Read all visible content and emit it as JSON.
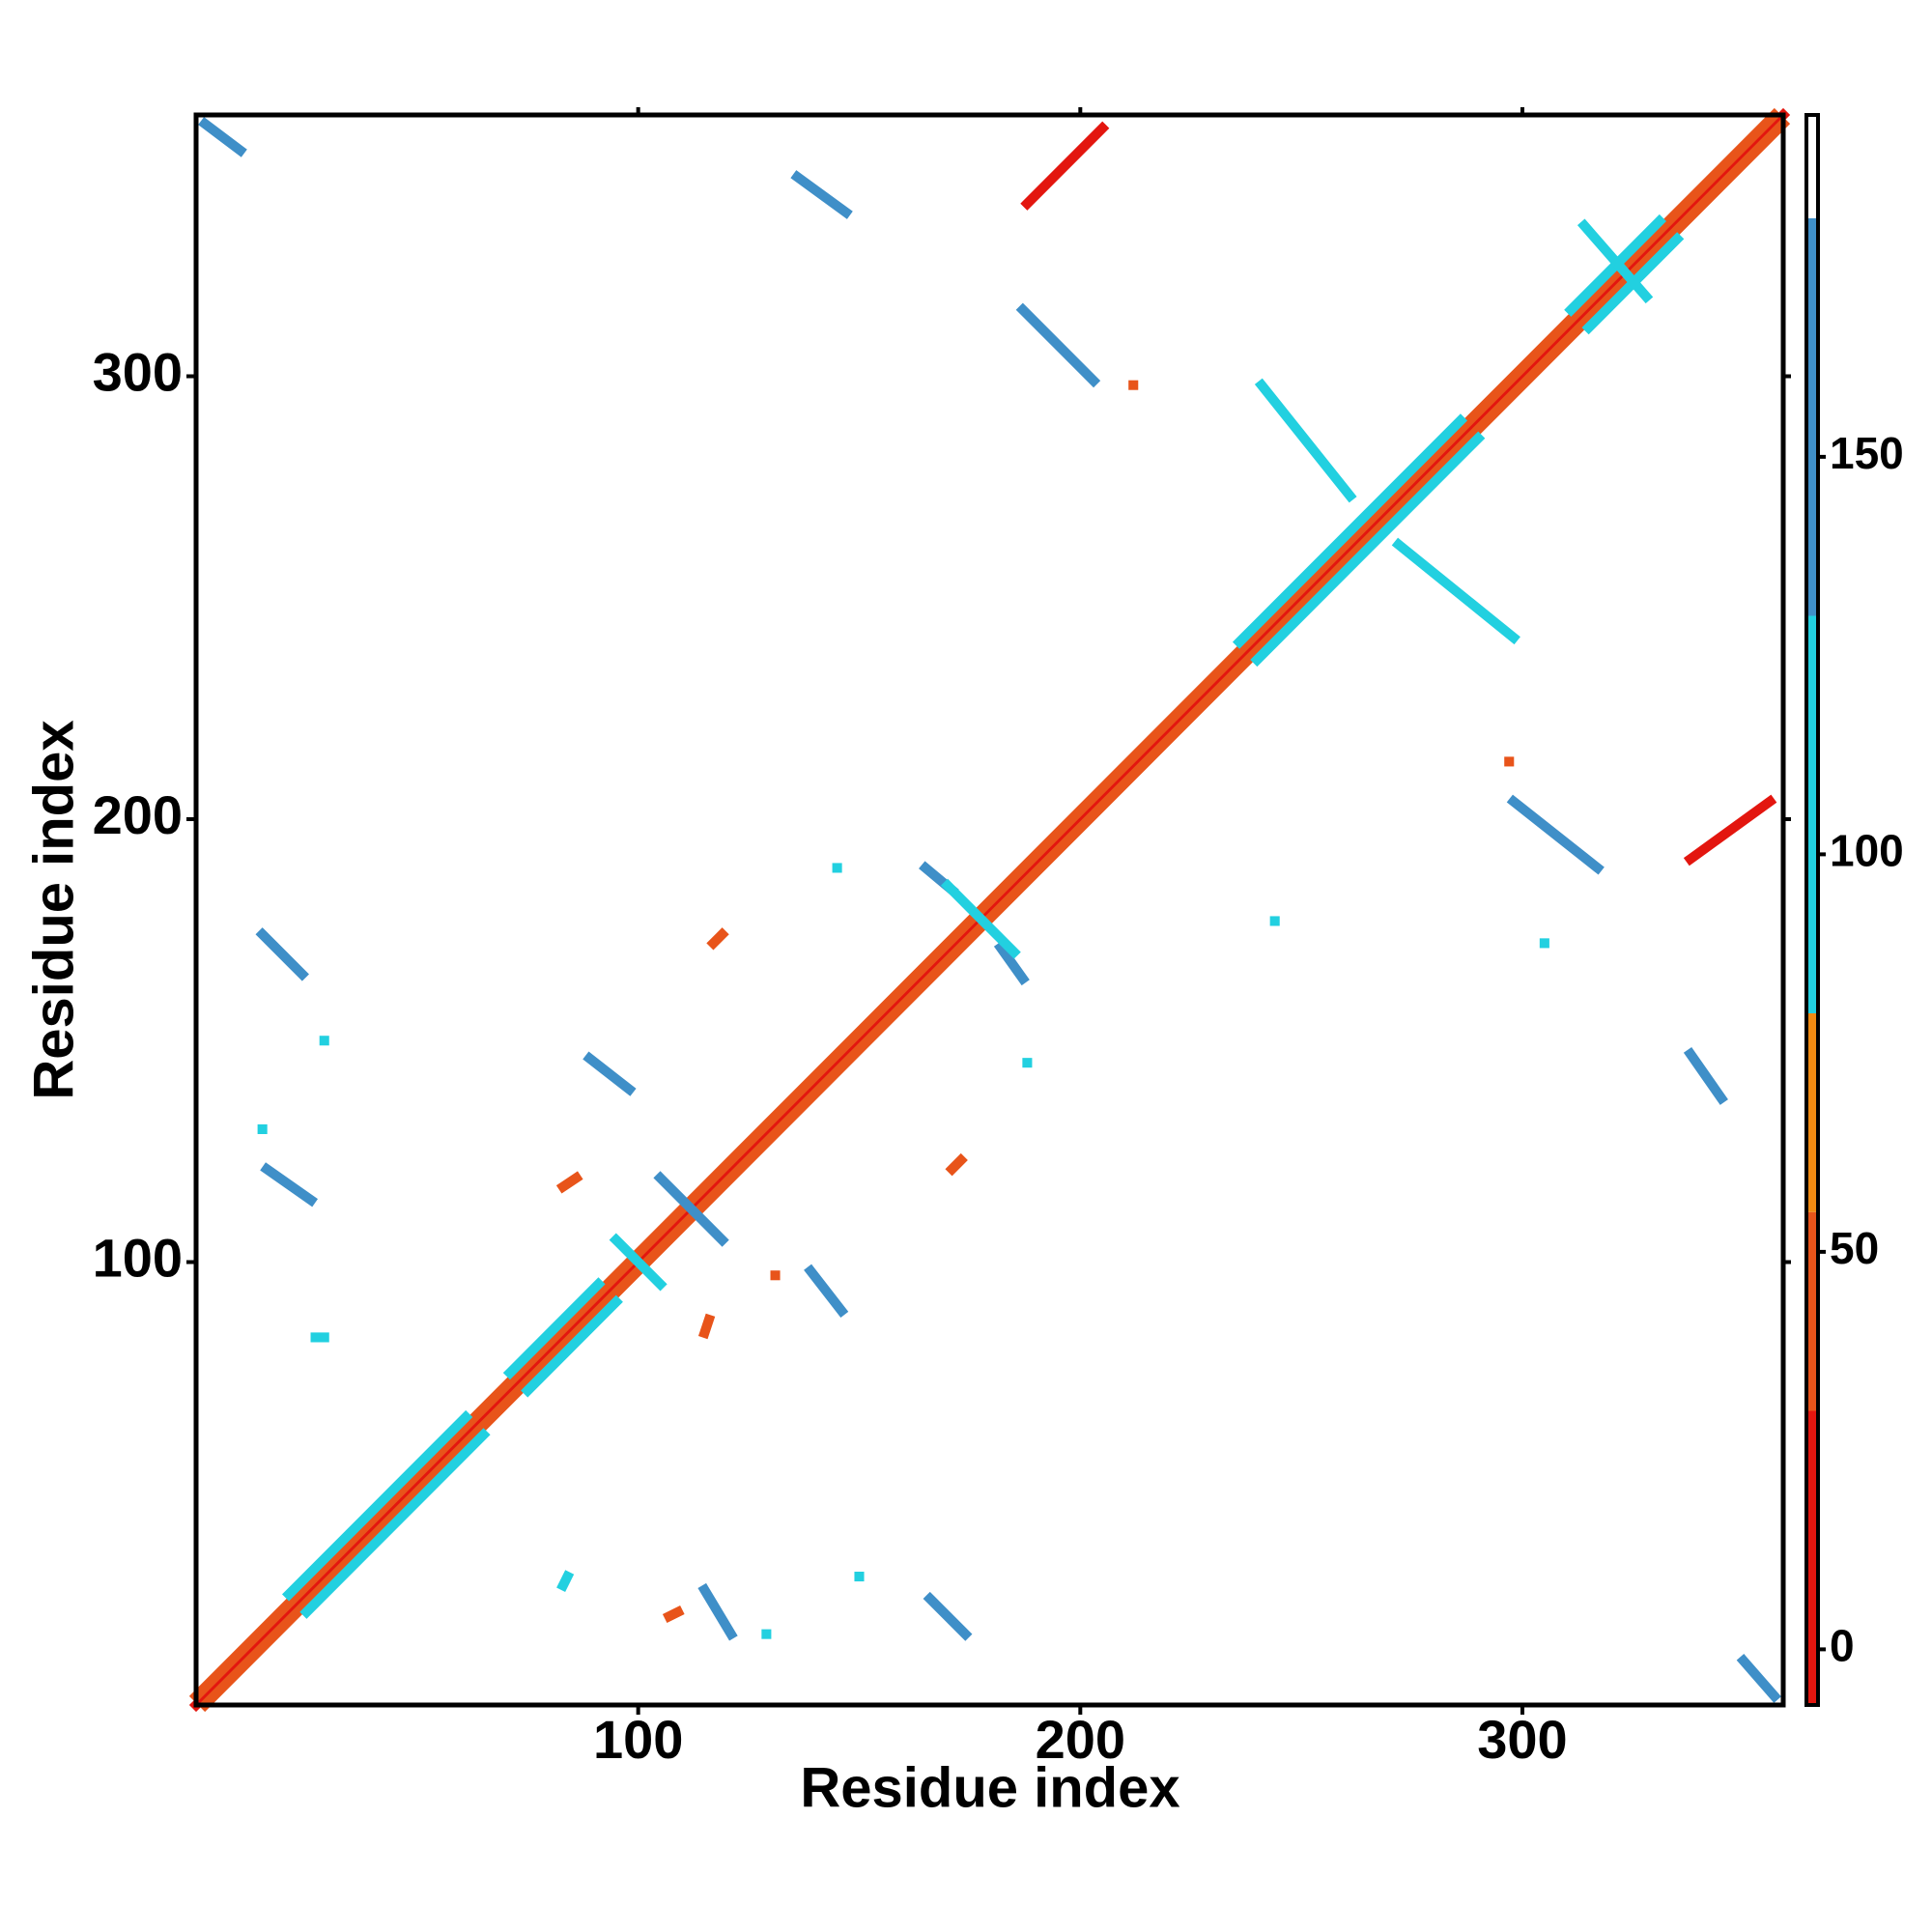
{
  "chart_data": {
    "type": "heatmap",
    "xlabel": "Residue index",
    "ylabel": "Residue index",
    "xlim": [
      0,
      359
    ],
    "ylim": [
      0,
      359
    ],
    "xticks": [
      100,
      200,
      300
    ],
    "yticks": [
      100,
      200,
      300
    ],
    "colorbar_lim": [
      -7,
      193
    ],
    "colorbar_ticks": [
      0,
      50,
      100,
      150
    ],
    "colorbar_breaks": [
      -7,
      30,
      55,
      80,
      130,
      180,
      193
    ],
    "colorbar_colors": [
      "#e3160f",
      "#e8541a",
      "#f08a12",
      "#22d0e0",
      "#3f8fc8",
      "#ffffff"
    ],
    "contacts": [
      [
        0,
        0,
        359,
        359,
        5
      ],
      [
        2,
        0,
        359,
        357,
        45
      ],
      [
        0,
        2,
        357,
        359,
        45
      ],
      [
        25,
        21,
        65,
        61,
        100
      ],
      [
        21,
        25,
        61,
        65,
        100
      ],
      [
        75,
        71,
        95,
        91,
        100
      ],
      [
        71,
        75,
        91,
        95,
        100
      ],
      [
        240,
        236,
        290,
        286,
        100
      ],
      [
        236,
        240,
        286,
        290,
        100
      ],
      [
        315,
        311,
        335,
        331,
        100
      ],
      [
        311,
        315,
        331,
        335,
        100
      ],
      [
        2,
        357,
        10,
        351,
        160
      ],
      [
        350,
        10,
        357,
        2,
        160
      ],
      [
        136,
        345,
        147,
        337,
        160
      ],
      [
        115,
        26,
        121,
        16,
        160
      ],
      [
        338,
        147,
        345,
        137,
        160
      ],
      [
        188,
        339,
        205,
        356,
        10
      ],
      [
        338,
        191,
        356,
        204,
        10
      ],
      [
        187,
        315,
        203,
        299,
        160
      ],
      [
        298,
        204,
        317,
        189,
        160
      ],
      [
        15,
        174,
        24,
        165,
        160
      ],
      [
        166,
        24,
        174,
        16,
        160
      ],
      [
        16,
        121,
        26,
        114,
        160
      ],
      [
        105,
        119,
        119,
        105,
        150
      ],
      [
        89,
        146,
        98,
        139,
        160
      ],
      [
        139,
        98,
        146,
        89,
        160
      ],
      [
        165,
        189,
        171,
        184,
        150
      ],
      [
        182,
        171,
        187,
        164,
        150
      ],
      [
        314,
        334,
        328,
        318,
        100
      ],
      [
        241,
        298,
        261,
        273,
        100
      ],
      [
        272,
        262,
        298,
        241,
        100
      ],
      [
        95,
        105,
        105,
        95,
        100
      ],
      [
        170,
        185,
        185,
        170,
        100
      ],
      [
        297,
        213,
        297,
        213,
        40
      ],
      [
        212,
        298,
        212,
        298,
        40
      ],
      [
        117,
        172,
        119,
        174,
        40
      ],
      [
        171,
        121,
        173,
        123,
        40
      ],
      [
        83,
        117,
        86,
        119,
        40
      ],
      [
        115,
        84,
        116,
        87,
        40
      ],
      [
        107,
        20,
        109,
        21,
        40
      ],
      [
        131,
        97,
        131,
        97,
        40
      ],
      [
        15,
        130,
        15,
        130,
        100
      ],
      [
        29,
        150,
        29,
        150,
        100
      ],
      [
        27,
        83,
        29,
        83,
        100
      ],
      [
        83,
        27,
        84,
        29,
        100
      ],
      [
        129,
        16,
        129,
        16,
        100
      ],
      [
        150,
        29,
        150,
        29,
        100
      ],
      [
        244,
        177,
        244,
        177,
        100
      ],
      [
        145,
        189,
        145,
        189,
        100
      ],
      [
        188,
        145,
        188,
        145,
        100
      ],
      [
        305,
        172,
        305,
        172,
        100
      ]
    ]
  }
}
